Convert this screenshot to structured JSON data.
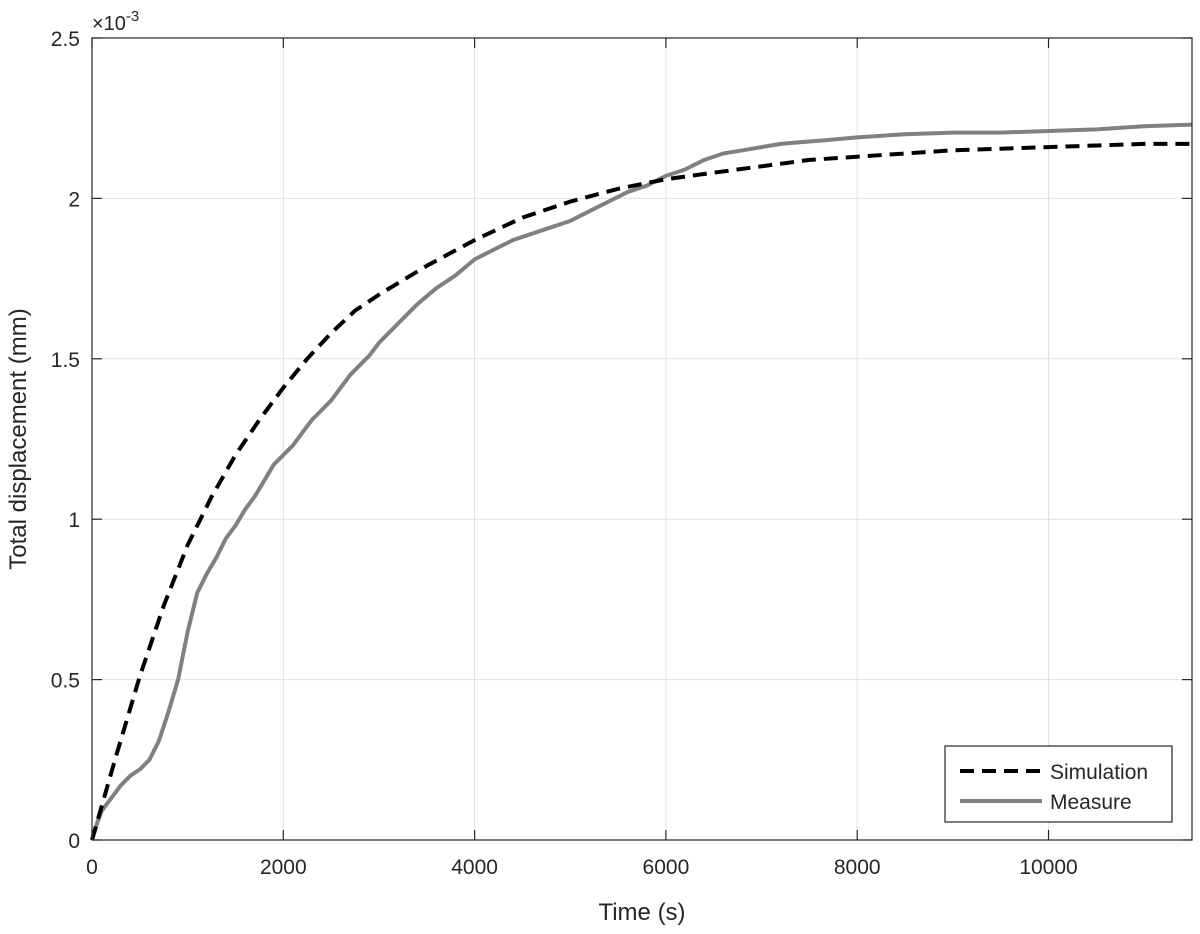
{
  "chart_data": {
    "type": "line",
    "title": "",
    "xlabel": "Time (s)",
    "ylabel": "Total displacement (mm)",
    "y_exponent_label": "×10",
    "y_exponent_power": "-3",
    "xlim": [
      0,
      11500
    ],
    "ylim": [
      0,
      2.5
    ],
    "y_scale_factor": 0.001,
    "x_ticks": [
      0,
      2000,
      4000,
      6000,
      8000,
      10000
    ],
    "x_tick_labels": [
      "0",
      "2000",
      "4000",
      "6000",
      "8000",
      "10000"
    ],
    "y_ticks": [
      0,
      0.5,
      1,
      1.5,
      2,
      2.5
    ],
    "y_tick_labels": [
      "0",
      "0.5",
      "1",
      "1.5",
      "2",
      "2.5"
    ],
    "grid": true,
    "legend_position": "bottom-right",
    "series": [
      {
        "name": "Simulation",
        "style": "dashed",
        "color": "#000000",
        "x": [
          0,
          250,
          500,
          750,
          1000,
          1250,
          1500,
          1750,
          2000,
          2250,
          2500,
          2750,
          3000,
          3500,
          4000,
          4500,
          5000,
          5500,
          6000,
          6500,
          7000,
          7500,
          8000,
          8500,
          9000,
          9500,
          10000,
          10500,
          11000,
          11500
        ],
        "y": [
          0,
          0.26,
          0.51,
          0.73,
          0.92,
          1.07,
          1.2,
          1.31,
          1.41,
          1.5,
          1.58,
          1.65,
          1.7,
          1.79,
          1.87,
          1.94,
          1.99,
          2.03,
          2.06,
          2.08,
          2.1,
          2.12,
          2.13,
          2.14,
          2.15,
          2.155,
          2.16,
          2.165,
          2.17,
          2.17
        ]
      },
      {
        "name": "Measure",
        "style": "solid",
        "color": "#808080",
        "x": [
          0,
          50,
          100,
          150,
          200,
          250,
          300,
          400,
          500,
          600,
          700,
          800,
          900,
          1000,
          1100,
          1200,
          1300,
          1400,
          1500,
          1600,
          1700,
          1800,
          1900,
          2000,
          2100,
          2200,
          2300,
          2400,
          2500,
          2600,
          2700,
          2800,
          2900,
          3000,
          3200,
          3400,
          3600,
          3800,
          4000,
          4200,
          4400,
          4600,
          4800,
          5000,
          5200,
          5400,
          5600,
          5800,
          6000,
          6200,
          6400,
          6600,
          6800,
          7000,
          7200,
          7400,
          7600,
          7800,
          8000,
          8500,
          9000,
          9500,
          10000,
          10500,
          11000,
          11500
        ],
        "y": [
          0,
          0.05,
          0.09,
          0.11,
          0.13,
          0.15,
          0.17,
          0.2,
          0.22,
          0.25,
          0.31,
          0.4,
          0.5,
          0.65,
          0.77,
          0.83,
          0.88,
          0.94,
          0.98,
          1.03,
          1.07,
          1.12,
          1.17,
          1.2,
          1.23,
          1.27,
          1.31,
          1.34,
          1.37,
          1.41,
          1.45,
          1.48,
          1.51,
          1.55,
          1.61,
          1.67,
          1.72,
          1.76,
          1.81,
          1.84,
          1.87,
          1.89,
          1.91,
          1.93,
          1.96,
          1.99,
          2.02,
          2.04,
          2.07,
          2.09,
          2.12,
          2.14,
          2.15,
          2.16,
          2.17,
          2.175,
          2.18,
          2.185,
          2.19,
          2.2,
          2.205,
          2.205,
          2.21,
          2.215,
          2.225,
          2.23
        ]
      }
    ]
  }
}
